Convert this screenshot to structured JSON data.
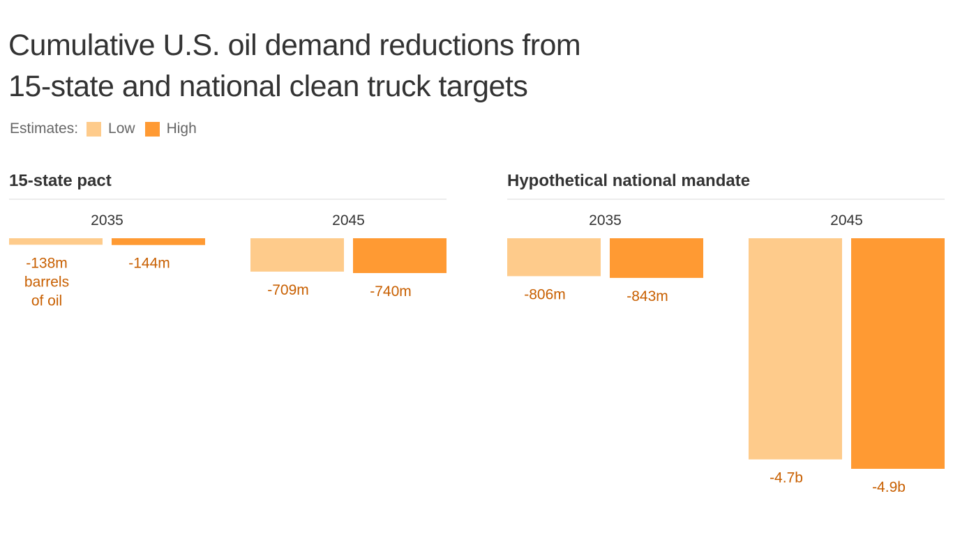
{
  "title_lines": [
    "Cumulative U.S. oil demand reductions from",
    "15-state and national clean truck targets"
  ],
  "legend": {
    "label": "Estimates:",
    "items": [
      {
        "name": "Low",
        "color": "#FECB8B"
      },
      {
        "name": "High",
        "color": "#FF9A33"
      }
    ]
  },
  "colors": {
    "low": "#FECB8B",
    "high": "#FF9A33",
    "value_text": "#C85F00",
    "axis_line": "#D9D9D9"
  },
  "chart_data": {
    "type": "bar",
    "unit": "barrels of oil",
    "series": [
      {
        "name": "Low"
      },
      {
        "name": "High"
      }
    ],
    "panels": [
      {
        "title": "15-state pact",
        "groups": [
          {
            "year": "2035",
            "values": [
              -138,
              -144
            ],
            "labels": [
              [
                "-138m",
                "barrels",
                "of oil"
              ],
              [
                "-144m"
              ]
            ]
          },
          {
            "year": "2045",
            "values": [
              -709,
              -740
            ],
            "labels": [
              [
                "-709m"
              ],
              [
                "-740m"
              ]
            ]
          }
        ]
      },
      {
        "title": "Hypothetical national mandate",
        "groups": [
          {
            "year": "2035",
            "values": [
              -806,
              -843
            ],
            "labels": [
              [
                "-806m"
              ],
              [
                "-843m"
              ]
            ]
          },
          {
            "year": "2045",
            "values": [
              -4700,
              -4900
            ],
            "labels": [
              [
                "-4.7b"
              ],
              [
                "-4.9b"
              ]
            ]
          }
        ]
      }
    ]
  }
}
